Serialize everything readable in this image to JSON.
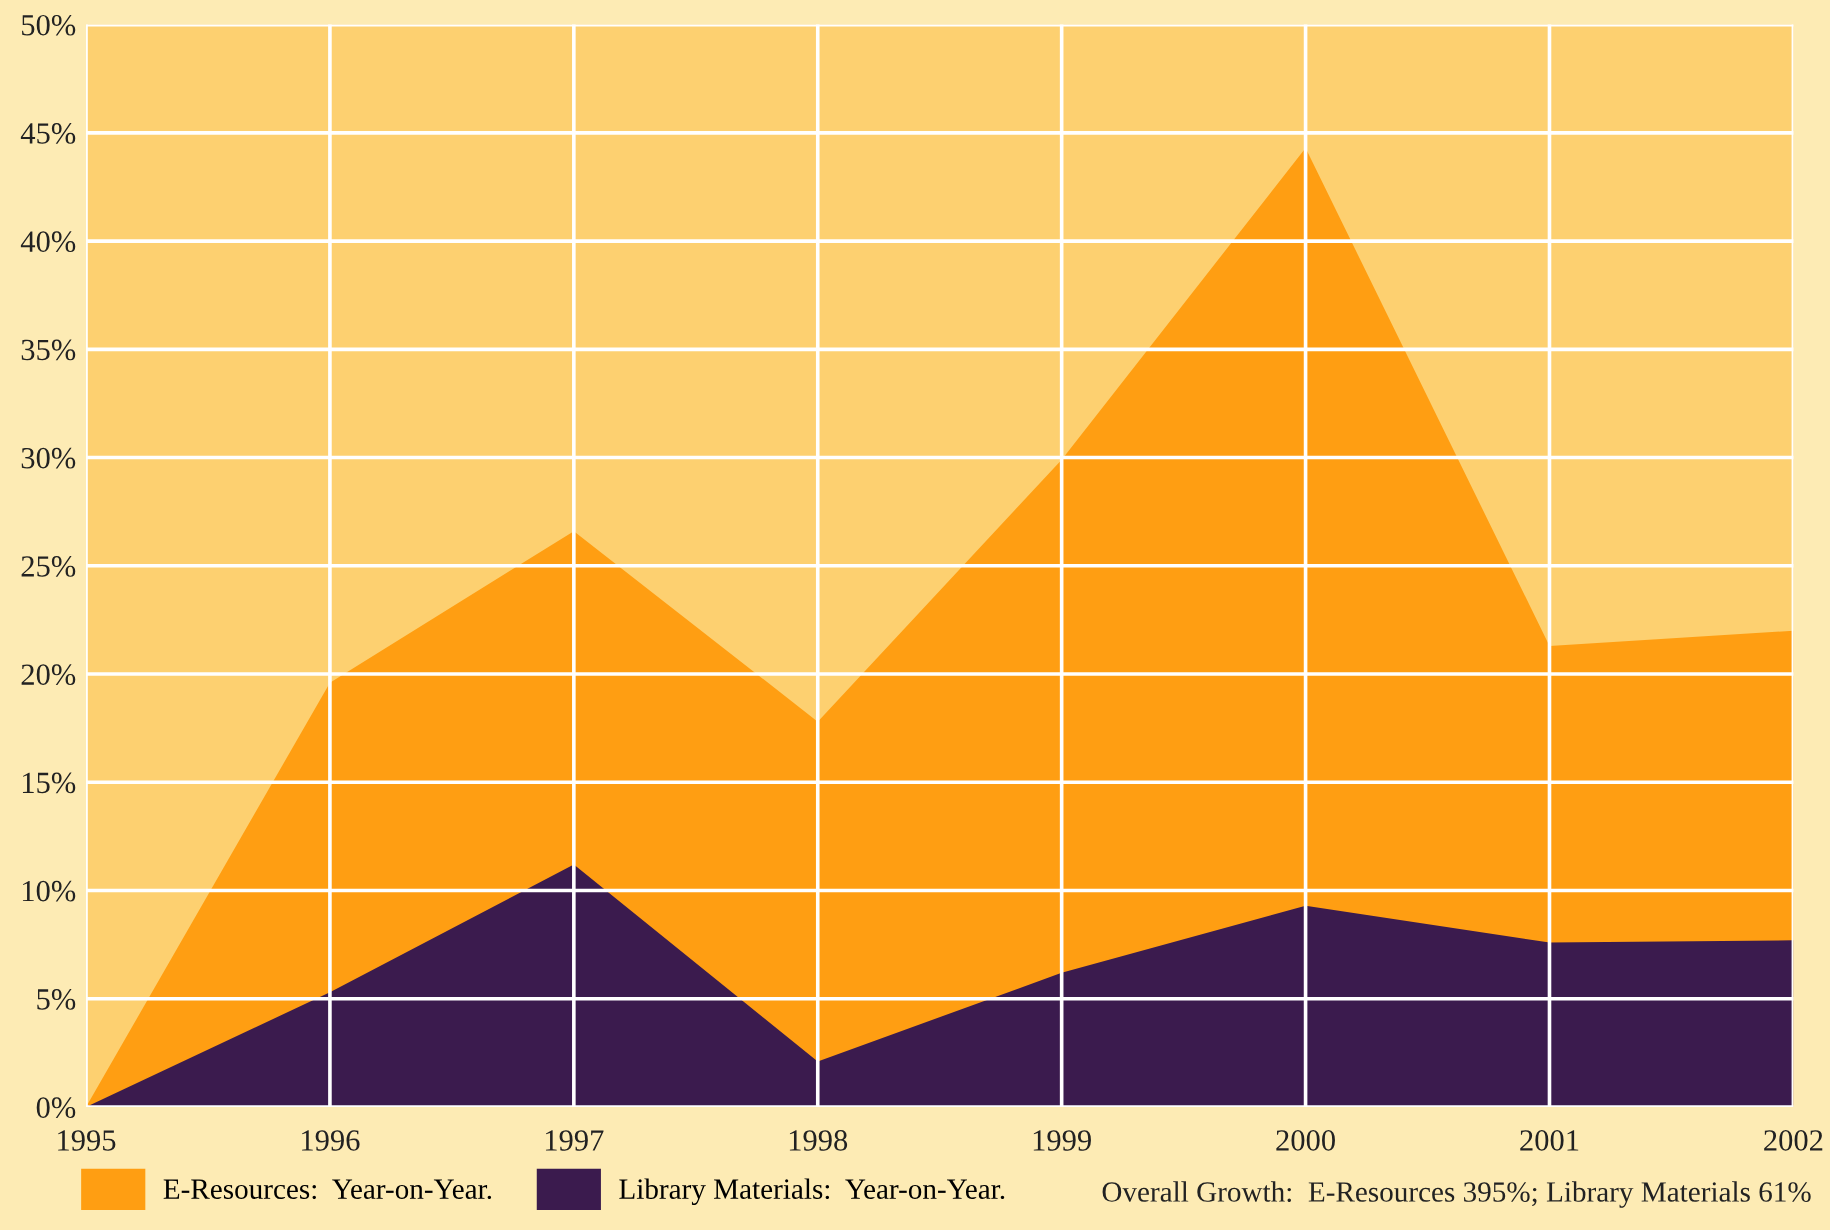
{
  "chart_data": {
    "type": "area",
    "x": [
      1995,
      1996,
      1997,
      1998,
      1999,
      2000,
      2001,
      2002
    ],
    "series": [
      {
        "name": "E-Resources:  Year-on-Year.",
        "color": "#ff9e12",
        "values": [
          0,
          19.6,
          26.6,
          17.8,
          29.9,
          44.3,
          21.3,
          22.0
        ]
      },
      {
        "name": "Library Materials:  Year-on-Year.",
        "color": "#3b1b4e",
        "values": [
          0,
          5.3,
          11.2,
          2.1,
          6.2,
          9.3,
          7.6,
          7.7
        ]
      }
    ],
    "xlim": [
      1995,
      2002
    ],
    "xticks": [
      1995,
      1996,
      1997,
      1998,
      1999,
      2000,
      2001,
      2002
    ],
    "ylim": [
      0,
      50
    ],
    "yticks": [
      {
        "value": 0,
        "label": "0%"
      },
      {
        "value": 5,
        "label": "5%"
      },
      {
        "value": 10,
        "label": "10%"
      },
      {
        "value": 15,
        "label": "15%"
      },
      {
        "value": 20,
        "label": "20%"
      },
      {
        "value": 25,
        "label": "25%"
      },
      {
        "value": 30,
        "label": "30%"
      },
      {
        "value": 35,
        "label": "35%"
      },
      {
        "value": 40,
        "label": "40%"
      },
      {
        "value": 45,
        "label": "45%"
      },
      {
        "value": 50,
        "label": "50%"
      }
    ],
    "grid": true,
    "legend": "bottom",
    "annotations": [
      "Overall Growth:  E-Resources 395%; Library Materials 61%"
    ]
  }
}
